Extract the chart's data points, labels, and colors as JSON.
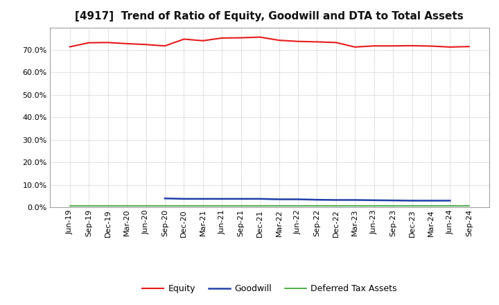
{
  "title": "[4917]  Trend of Ratio of Equity, Goodwill and DTA to Total Assets",
  "x_labels": [
    "Jun-19",
    "Sep-19",
    "Dec-19",
    "Mar-20",
    "Jun-20",
    "Sep-20",
    "Dec-20",
    "Mar-21",
    "Jun-21",
    "Sep-21",
    "Dec-21",
    "Mar-22",
    "Jun-22",
    "Sep-22",
    "Dec-22",
    "Mar-23",
    "Jun-23",
    "Sep-23",
    "Dec-23",
    "Mar-24",
    "Jun-24",
    "Sep-24"
  ],
  "equity": [
    0.714,
    0.732,
    0.733,
    0.728,
    0.724,
    0.718,
    0.748,
    0.741,
    0.753,
    0.754,
    0.757,
    0.743,
    0.738,
    0.736,
    0.733,
    0.713,
    0.718,
    0.718,
    0.719,
    0.717,
    0.713,
    0.715
  ],
  "goodwill": [
    null,
    null,
    null,
    null,
    null,
    0.04,
    0.038,
    0.038,
    0.038,
    0.038,
    0.038,
    0.036,
    0.036,
    0.034,
    0.033,
    0.033,
    0.032,
    0.031,
    0.03,
    0.03,
    0.03,
    null
  ],
  "dta": [
    0.008,
    0.008,
    0.008,
    0.008,
    0.008,
    0.008,
    0.008,
    0.008,
    0.008,
    0.008,
    0.008,
    0.008,
    0.008,
    0.008,
    0.008,
    0.008,
    0.008,
    0.008,
    0.008,
    0.008,
    0.008,
    0.008
  ],
  "equity_color": "#e8191a",
  "goodwill_color": "#1f3faa",
  "dta_color": "#2ca02c",
  "background_color": "#ffffff",
  "plot_bg_color": "#ffffff",
  "grid_color": "#999999",
  "ylim": [
    0.0,
    0.8
  ],
  "yticks": [
    0.0,
    0.1,
    0.2,
    0.3,
    0.4,
    0.5,
    0.6,
    0.7
  ],
  "legend_labels": [
    "Equity",
    "Goodwill",
    "Deferred Tax Assets"
  ],
  "title_fontsize": 11,
  "tick_fontsize": 8
}
